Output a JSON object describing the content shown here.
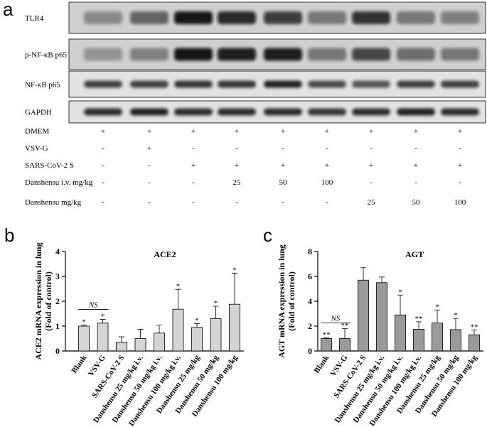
{
  "panel_a": {
    "label": "a",
    "blots": [
      "TLR4",
      "p-NF-κB p65",
      "NF-κB p65",
      "GAPDH"
    ],
    "treatments": [
      {
        "name": "DMEM",
        "values": [
          "+",
          "+",
          "+",
          "+",
          "+",
          "+",
          "+",
          "+",
          "+"
        ]
      },
      {
        "name": "VSV-G",
        "values": [
          "-",
          "+",
          "-",
          "-",
          "-",
          "-",
          "-",
          "-",
          "-"
        ]
      },
      {
        "name": "SARS-CoV-2 S",
        "values": [
          "-",
          "-",
          "+",
          "+",
          "+",
          "+",
          "+",
          "+",
          "+"
        ]
      },
      {
        "name": "Danshensu i.v.  mg/kg",
        "values": [
          "-",
          "-",
          "-",
          "25",
          "50",
          "100",
          "-",
          "-",
          "-"
        ]
      },
      {
        "name": "Danshensu mg/kg",
        "values": [
          "-",
          "-",
          "-",
          "-",
          "-",
          "-",
          "25",
          "50",
          "100"
        ]
      }
    ]
  },
  "chart_data": [
    {
      "type": "bar",
      "panel_label": "b",
      "title": "ACE2",
      "y_label": [
        "ACE2 mRNA expression in lung",
        "(Fold of control)"
      ],
      "categories": [
        "Blank",
        "VSV-G",
        "SARS-CoV-2 S",
        "Danshensu 25 mg/kg i.v.",
        "Danshensu 50 mg/kg i.v.",
        "Danshensu 100 mg/kg i.v.",
        "Danshensu 25 mg/kg",
        "Danshensu 50 mg/kg",
        "Danshensu 100 mg/kg"
      ],
      "values": [
        1.0,
        1.12,
        0.35,
        0.5,
        0.72,
        1.68,
        0.95,
        1.3,
        1.88
      ],
      "errors": [
        0.05,
        0.15,
        0.22,
        0.37,
        0.32,
        0.8,
        0.15,
        0.5,
        1.25
      ],
      "significance": [
        "*",
        "*",
        null,
        null,
        null,
        "*",
        "*",
        "*",
        "*"
      ],
      "annotation": "NS",
      "color": "#d4d4d4",
      "ylim": [
        0,
        4
      ],
      "yticks": [
        0,
        1,
        2,
        3,
        4
      ]
    },
    {
      "type": "bar",
      "panel_label": "c",
      "title": "AGT",
      "y_label": [
        "AGT mRNA expression in lung",
        "(Fold of control)"
      ],
      "categories": [
        "Blank",
        "VSV-G",
        "SARS-CoV-2 S",
        "Danshensu 25 mg/kg i.v.",
        "Danshensu 50 mg/kg i.v.",
        "Danshensu 100 mg/kg i.v.",
        "Danshensu 25 mg/kg",
        "Danshensu 50 mg/kg",
        "Danshensu 100 mg/kg"
      ],
      "values": [
        1.0,
        1.0,
        5.7,
        5.5,
        2.9,
        1.75,
        2.25,
        1.72,
        1.3
      ],
      "errors": [
        0.05,
        0.8,
        1.0,
        0.45,
        1.6,
        0.6,
        1.05,
        0.9,
        0.4
      ],
      "significance": [
        "**",
        "**",
        null,
        null,
        "*",
        "**",
        "*",
        "*",
        "**"
      ],
      "annotation": "NS",
      "color": "#9a9a9a",
      "ylim": [
        0,
        8
      ],
      "yticks": [
        0,
        2,
        4,
        6,
        8
      ]
    }
  ]
}
